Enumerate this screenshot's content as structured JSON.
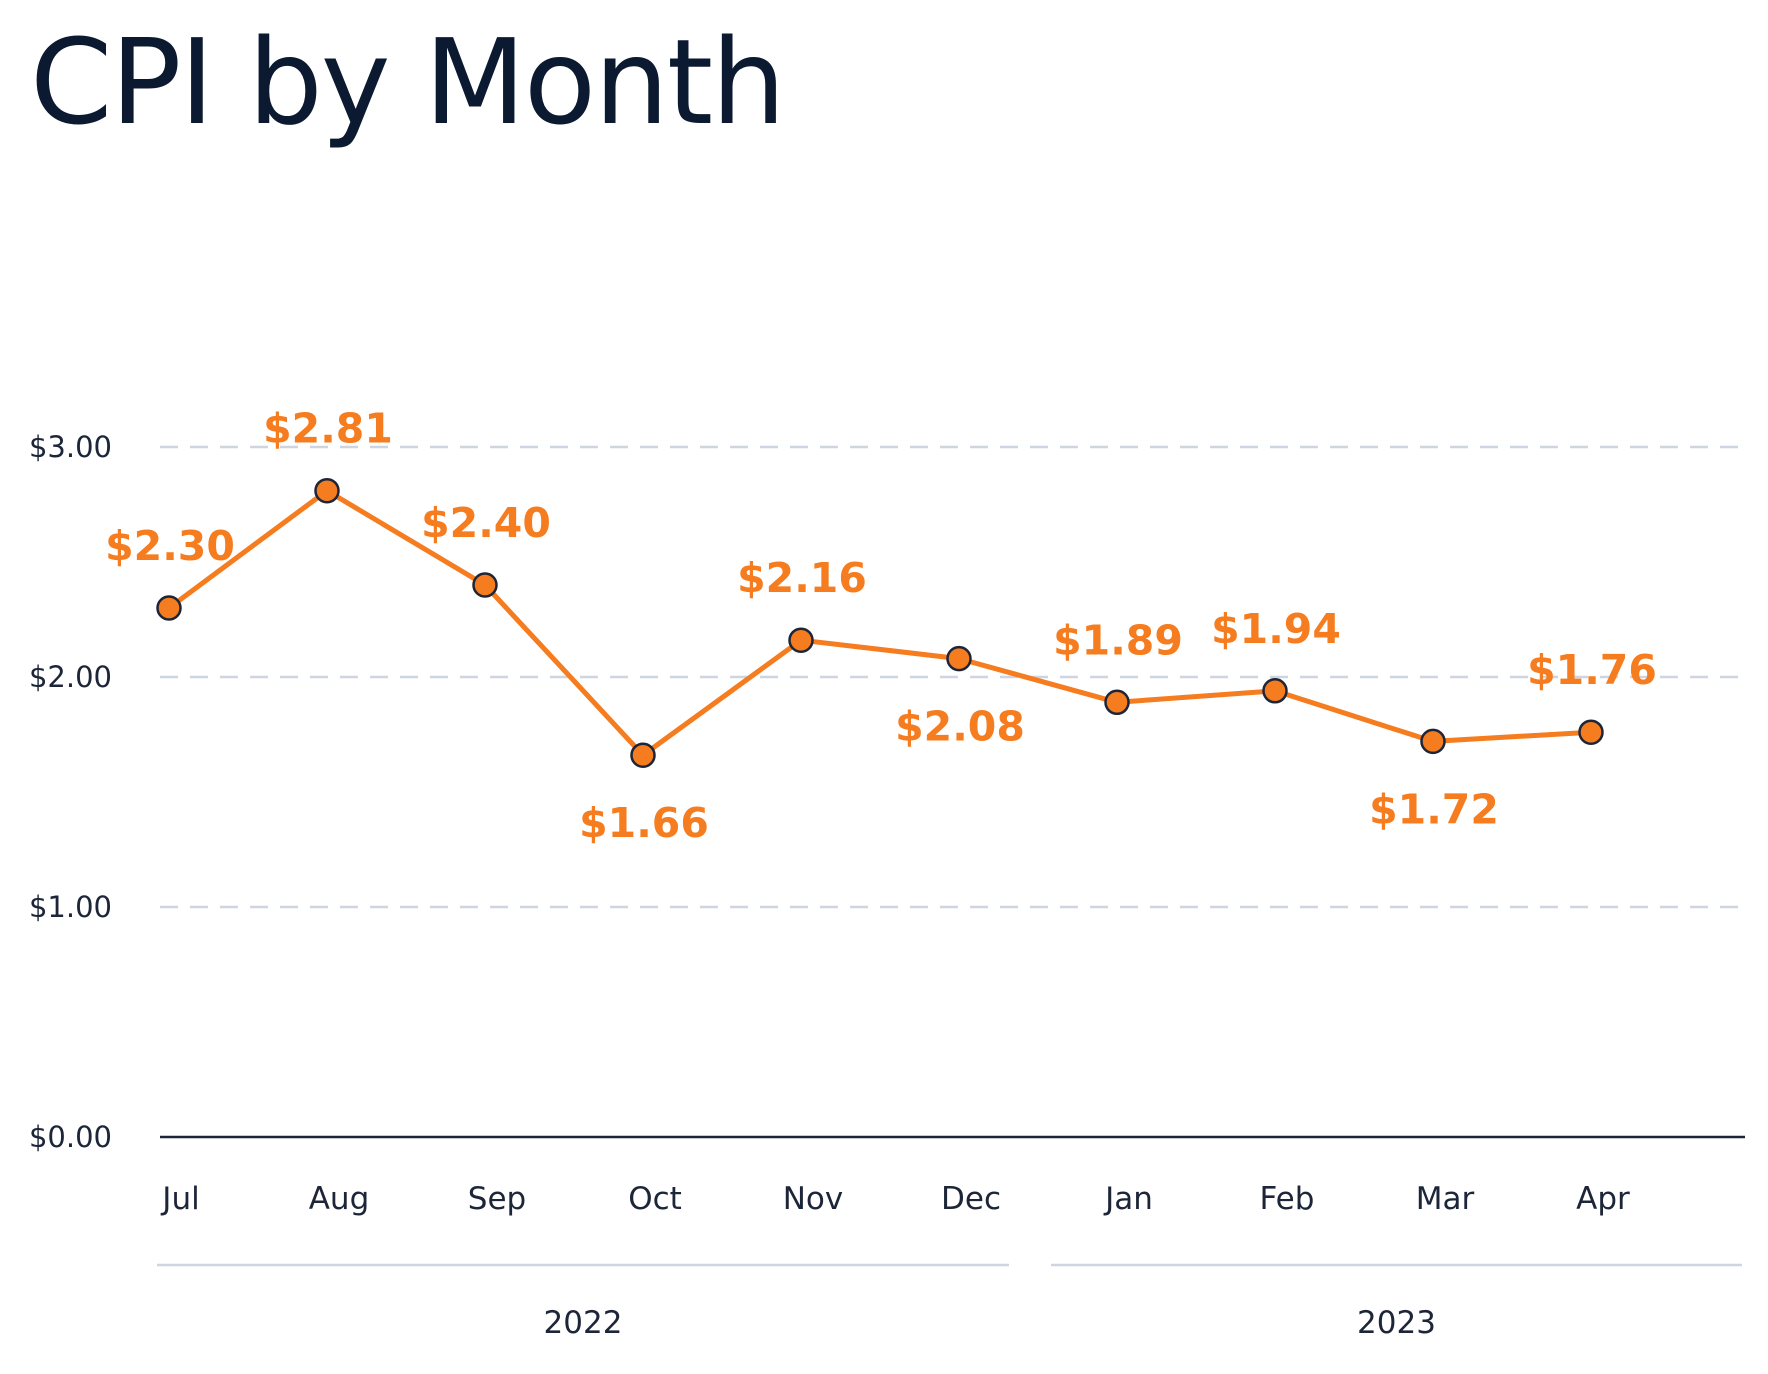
{
  "chart_data": {
    "type": "line",
    "title": "CPI by Month",
    "xlabel": "",
    "ylabel": "",
    "categories": [
      "Jul",
      "Aug",
      "Sep",
      "Oct",
      "Nov",
      "Dec",
      "Jan",
      "Feb",
      "Mar",
      "Apr"
    ],
    "year_groups": [
      {
        "label": "2022",
        "categories": [
          "Jul",
          "Aug",
          "Sep",
          "Oct",
          "Nov",
          "Dec"
        ]
      },
      {
        "label": "2023",
        "categories": [
          "Jan",
          "Feb",
          "Mar",
          "Apr"
        ]
      }
    ],
    "series": [
      {
        "name": "",
        "values": [
          2.3,
          2.81,
          2.4,
          1.66,
          2.16,
          2.08,
          1.89,
          1.94,
          1.72,
          1.76
        ]
      }
    ],
    "data_labels": [
      "$2.30",
      "$2.81",
      "$2.40",
      "$1.66",
      "$2.16",
      "$2.08",
      "$1.89",
      "$1.94",
      "$1.72",
      "$1.76"
    ],
    "label_placement": [
      "above",
      "above",
      "above",
      "below",
      "above",
      "below",
      "above",
      "above",
      "below",
      "above"
    ],
    "yticks": [
      0,
      1,
      2,
      3
    ],
    "ytick_labels": [
      "$0.00",
      "$1.00",
      "$2.00",
      "$3.00"
    ],
    "ylim": [
      0,
      3
    ],
    "grid": true,
    "legend": "none",
    "colors": {
      "line": "#f57c1f",
      "marker_stroke": "#1d2638",
      "grid": "#cdd5e0",
      "axis": "#1d2638",
      "label": "#f57c1f"
    }
  }
}
